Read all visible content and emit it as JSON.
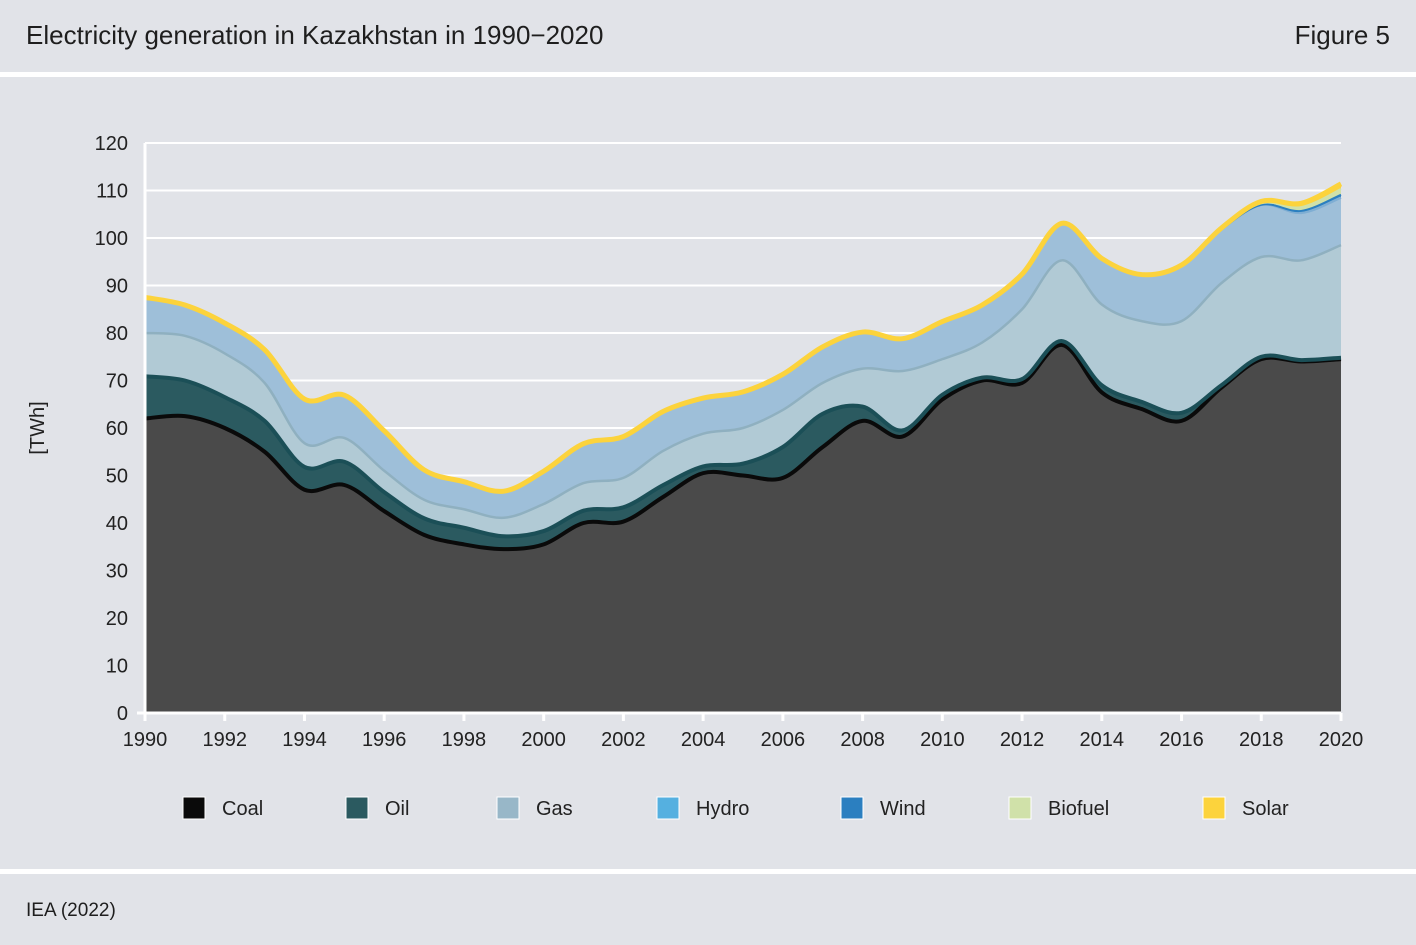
{
  "header": {
    "title": "Electricity generation in Kazakhstan in 1990−2020",
    "figure_label": "Figure 5"
  },
  "footer": {
    "source": "IEA (2022)"
  },
  "colors": {
    "coal": "#4a4a4a",
    "coal_line": "#0a0a0a",
    "oil": "#2b5a60",
    "oil_line": "#1b4f57",
    "gas": "#b1cad5",
    "gas_line": "#8fb0c0",
    "hydro": "#9ebfd9",
    "hydro_line": "#7faed3",
    "wind": "#2b7fc0",
    "biofuel": "#d0e1a9",
    "solar": "#fcd33c"
  },
  "chart_data": {
    "type": "area",
    "stacked": true,
    "title": "Electricity generation in Kazakhstan in 1990−2020",
    "ylabel": "[TWh]",
    "xlabel": "",
    "ylim": [
      0,
      120
    ],
    "yticks": [
      "0",
      "10",
      "20",
      "30",
      "40",
      "50",
      "60",
      "70",
      "80",
      "90",
      "100",
      "110",
      "120"
    ],
    "xticks": [
      "1990",
      "1992",
      "1994",
      "1996",
      "1998",
      "2000",
      "2002",
      "2004",
      "2006",
      "2008",
      "2010",
      "2012",
      "2014",
      "2016",
      "2018",
      "2020"
    ],
    "grid": true,
    "legend_position": "bottom",
    "x": [
      1990,
      1991,
      1992,
      1993,
      1994,
      1995,
      1996,
      1997,
      1998,
      1999,
      2000,
      2001,
      2002,
      2003,
      2004,
      2005,
      2006,
      2007,
      2008,
      2009,
      2010,
      2011,
      2012,
      2013,
      2014,
      2015,
      2016,
      2017,
      2018,
      2019,
      2020
    ],
    "series": [
      {
        "name": "Coal",
        "values": [
          62,
          62.5,
          60,
          55,
          47,
          48,
          42.5,
          37.5,
          35.5,
          34.5,
          35.5,
          40,
          40.3,
          45.5,
          50.5,
          50,
          49.5,
          56,
          61.5,
          58.2,
          66,
          70,
          69.5,
          77.5,
          67.5,
          64,
          61.5,
          68.5,
          74.5,
          74,
          74.5
        ]
      },
      {
        "name": "Oil",
        "values": [
          8.9,
          7.5,
          6.5,
          6.5,
          4.8,
          4.9,
          4,
          3.5,
          3.5,
          2.7,
          2.8,
          2.6,
          3,
          2.5,
          1.4,
          2.5,
          6.5,
          7,
          3,
          1.3,
          1,
          0.6,
          0.8,
          0.8,
          1.5,
          1.5,
          1.7,
          0.5,
          0.5,
          0.3,
          0.3
        ]
      },
      {
        "name": "Gas",
        "values": [
          9.1,
          9.4,
          9.2,
          8,
          5,
          5,
          4.5,
          3.9,
          3.9,
          3.9,
          5.7,
          5.8,
          6.2,
          7.2,
          6.9,
          7.5,
          7.8,
          6.5,
          8,
          12.5,
          7.5,
          7.4,
          14.7,
          17,
          17,
          17,
          19.3,
          21.5,
          21,
          21,
          23.7
        ]
      },
      {
        "name": "Hydro",
        "values": [
          7.5,
          6.5,
          6.4,
          7,
          9.3,
          9,
          8.4,
          6.3,
          5.8,
          5.6,
          6.9,
          8.3,
          8.7,
          8.3,
          7.5,
          7.6,
          7.5,
          7.6,
          7.7,
          6.8,
          7.9,
          7.9,
          7.4,
          7.8,
          9.7,
          9.8,
          11.8,
          11.3,
          11,
          10,
          10
        ]
      },
      {
        "name": "Wind",
        "values": [
          0,
          0,
          0,
          0,
          0,
          0,
          0,
          0,
          0,
          0,
          0,
          0,
          0,
          0,
          0,
          0,
          0,
          0,
          0,
          0,
          0,
          0,
          0,
          0,
          0,
          0,
          0,
          0,
          0,
          0.4,
          0.6
        ]
      },
      {
        "name": "Biofuel",
        "values": [
          0,
          0,
          0,
          0,
          0,
          0,
          0,
          0,
          0,
          0,
          0,
          0,
          0,
          0,
          0,
          0,
          0,
          0,
          0,
          0,
          0,
          0,
          0,
          0,
          0,
          0,
          0,
          0.2,
          0.3,
          0.8,
          1.2
        ]
      },
      {
        "name": "Solar",
        "values": [
          0,
          0,
          0,
          0,
          0,
          0,
          0,
          0,
          0,
          0,
          0,
          0,
          0,
          0,
          0,
          0,
          0,
          0,
          0,
          0,
          0,
          0,
          0,
          0,
          0,
          0,
          0,
          0.1,
          0.4,
          0.8,
          1.1
        ]
      }
    ]
  }
}
